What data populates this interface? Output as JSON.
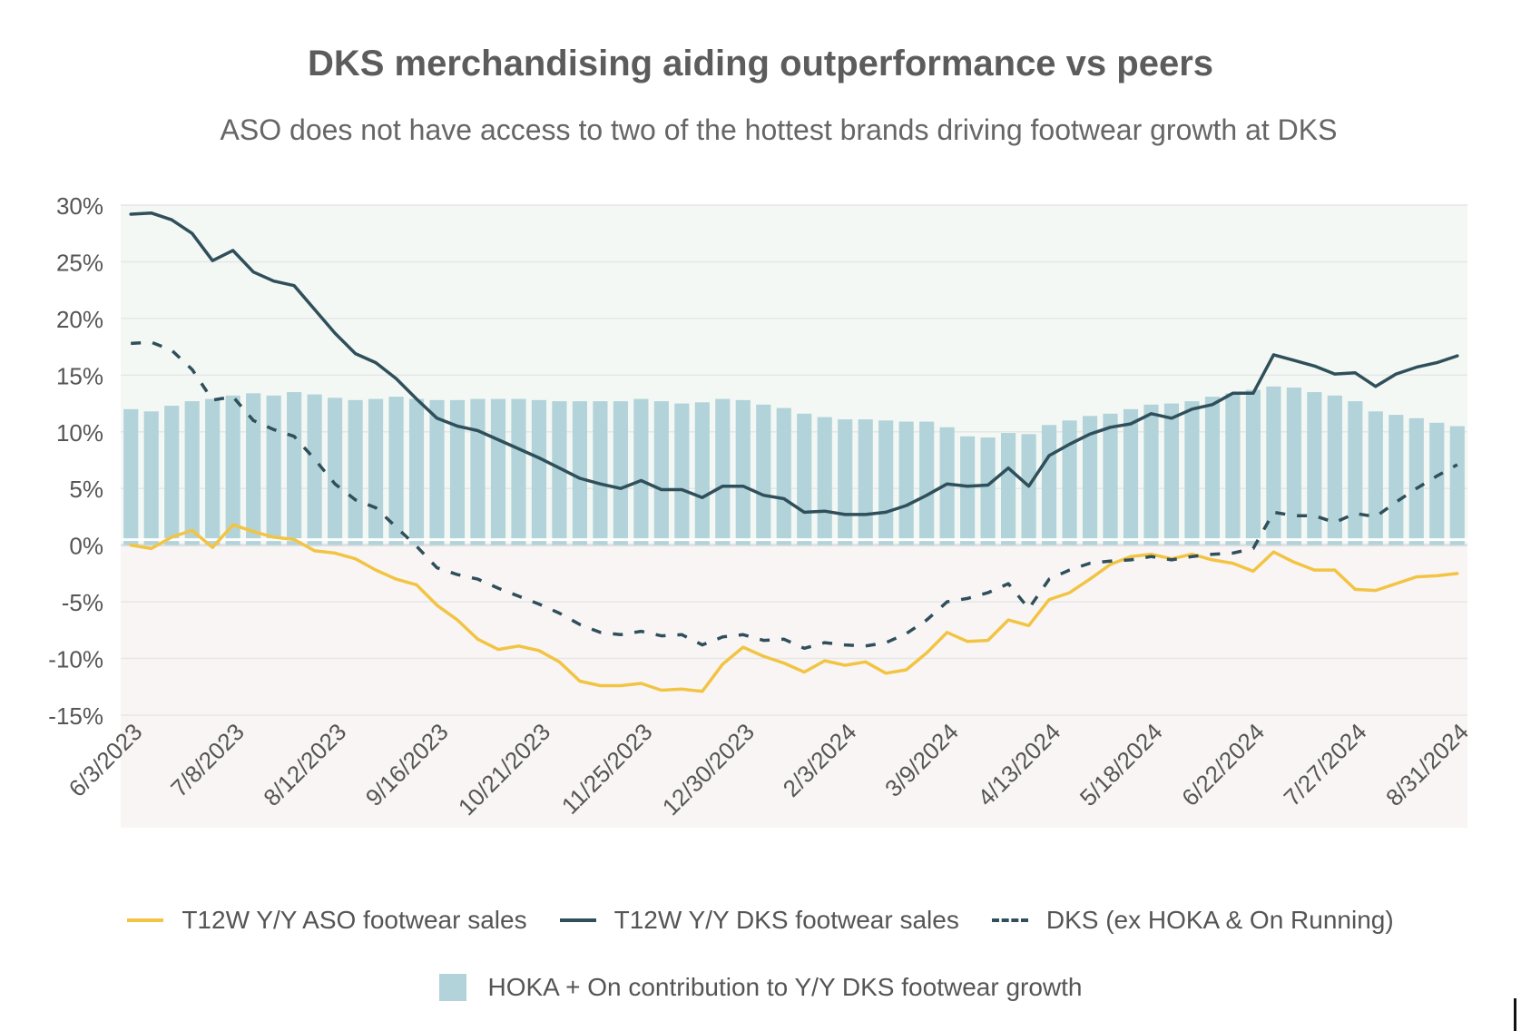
{
  "title": "DKS merchandising aiding outperformance vs peers",
  "subtitle": "ASO does not have access to two of the hottest brands driving footwear growth at DKS",
  "chart_data": {
    "type": "bar+line",
    "ylim": [
      -15,
      30
    ],
    "yticks": [
      30,
      25,
      20,
      15,
      10,
      5,
      0,
      -5,
      -10,
      -15
    ],
    "ytick_labels": [
      "30%",
      "25%",
      "20%",
      "15%",
      "10%",
      "5%",
      "0%",
      "-5%",
      "-10%",
      "-15%"
    ],
    "xtick_labels": [
      "6/3/2023",
      "7/8/2023",
      "8/12/2023",
      "9/16/2023",
      "10/21/2023",
      "11/25/2023",
      "12/30/2023",
      "2/3/2024",
      "3/9/2024",
      "4/13/2024",
      "5/18/2024",
      "6/22/2024",
      "7/27/2024",
      "8/31/2024"
    ],
    "n_weeks": 66,
    "series": [
      {
        "name": "T12W Y/Y ASO footwear sales",
        "kind": "line",
        "style": "solid",
        "color": "#f2c443",
        "values": [
          0,
          -0.3,
          0.7,
          1.3,
          -0.2,
          1.8,
          1.2,
          0.7,
          0.5,
          -0.5,
          -0.7,
          -1.2,
          -2.2,
          -3.0,
          -3.5,
          -5.3,
          -6.6,
          -8.3,
          -9.2,
          -8.9,
          -9.3,
          -10.3,
          -12.0,
          -12.4,
          -12.4,
          -12.2,
          -12.8,
          -12.7,
          -12.9,
          -10.5,
          -9.0,
          -9.8,
          -10.4,
          -11.2,
          -10.2,
          -10.6,
          -10.3,
          -11.3,
          -11.0,
          -9.5,
          -7.7,
          -8.5,
          -8.4,
          -6.6,
          -7.1,
          -4.8,
          -4.2,
          -3.0,
          -1.7,
          -1.0,
          -0.8,
          -1.2,
          -0.8,
          -1.3,
          -1.6,
          -2.3,
          -0.6,
          -1.5,
          -2.2,
          -2.2,
          -3.9,
          -4.0,
          -3.4,
          -2.8,
          -2.7,
          -2.5
        ]
      },
      {
        "name": "T12W Y/Y DKS footwear sales",
        "kind": "line",
        "style": "solid",
        "color": "#2f4f5a",
        "values": [
          29.2,
          29.3,
          28.7,
          27.5,
          25.1,
          26.0,
          24.1,
          23.3,
          22.9,
          20.8,
          18.7,
          16.9,
          16.1,
          14.7,
          12.9,
          11.2,
          10.5,
          10.1,
          9.3,
          8.5,
          7.7,
          6.8,
          5.9,
          5.4,
          5.0,
          5.7,
          4.9,
          4.9,
          4.2,
          5.2,
          5.2,
          4.4,
          4.1,
          2.9,
          3.0,
          2.7,
          2.7,
          2.9,
          3.5,
          4.4,
          5.4,
          5.2,
          5.3,
          6.8,
          5.2,
          7.9,
          8.9,
          9.8,
          10.4,
          10.7,
          11.6,
          11.2,
          12.0,
          12.4,
          13.4,
          13.4,
          16.8,
          16.3,
          15.8,
          15.1,
          15.2,
          14.0,
          15.1,
          15.7,
          16.1,
          16.7
        ]
      },
      {
        "name": "DKS (ex HOKA & On Running)",
        "kind": "line",
        "style": "dashed",
        "color": "#2f4f5a",
        "values": [
          17.8,
          17.9,
          17.2,
          15.5,
          12.8,
          13.1,
          11.0,
          10.2,
          9.6,
          7.6,
          5.4,
          4.0,
          3.3,
          1.6,
          -0.1,
          -2.0,
          -2.6,
          -3.0,
          -3.8,
          -4.5,
          -5.2,
          -6.0,
          -7.0,
          -7.7,
          -7.9,
          -7.6,
          -8.0,
          -7.9,
          -8.8,
          -8.1,
          -7.9,
          -8.4,
          -8.3,
          -9.1,
          -8.6,
          -8.8,
          -8.9,
          -8.6,
          -7.8,
          -6.6,
          -5.0,
          -4.7,
          -4.2,
          -3.4,
          -5.6,
          -3.0,
          -2.2,
          -1.6,
          -1.4,
          -1.3,
          -1.0,
          -1.3,
          -1.0,
          -0.8,
          -0.7,
          -0.3,
          2.9,
          2.6,
          2.6,
          2.0,
          2.8,
          2.5,
          3.8,
          5.0,
          6.1,
          7.1
        ]
      },
      {
        "name": "HOKA + On contribution to Y/Y DKS footwear growth",
        "kind": "bar",
        "color": "#b3d3da",
        "values": [
          12.0,
          11.8,
          12.3,
          12.7,
          12.9,
          13.2,
          13.4,
          13.2,
          13.5,
          13.3,
          13.0,
          12.8,
          12.9,
          13.1,
          12.9,
          12.8,
          12.8,
          12.9,
          12.9,
          12.9,
          12.8,
          12.7,
          12.7,
          12.7,
          12.7,
          12.9,
          12.7,
          12.5,
          12.6,
          12.9,
          12.8,
          12.4,
          12.1,
          11.6,
          11.3,
          11.1,
          11.1,
          11.0,
          10.9,
          10.9,
          10.4,
          9.6,
          9.5,
          9.9,
          9.8,
          10.6,
          11.0,
          11.4,
          11.6,
          12.0,
          12.4,
          12.5,
          12.7,
          13.1,
          13.4,
          13.7,
          14.0,
          13.9,
          13.5,
          13.2,
          12.7,
          11.8,
          11.5,
          11.2,
          10.8,
          10.5
        ]
      }
    ],
    "legend_position": "bottom-center",
    "background_positive": "#f4f8f4",
    "background_negative": "#f9f5f5"
  },
  "legend": {
    "aso": "T12W Y/Y ASO footwear sales",
    "dks": "T12W Y/Y DKS footwear sales",
    "dks_ex": "DKS (ex HOKA & On Running)",
    "bars": "HOKA + On contribution to Y/Y DKS footwear growth"
  }
}
